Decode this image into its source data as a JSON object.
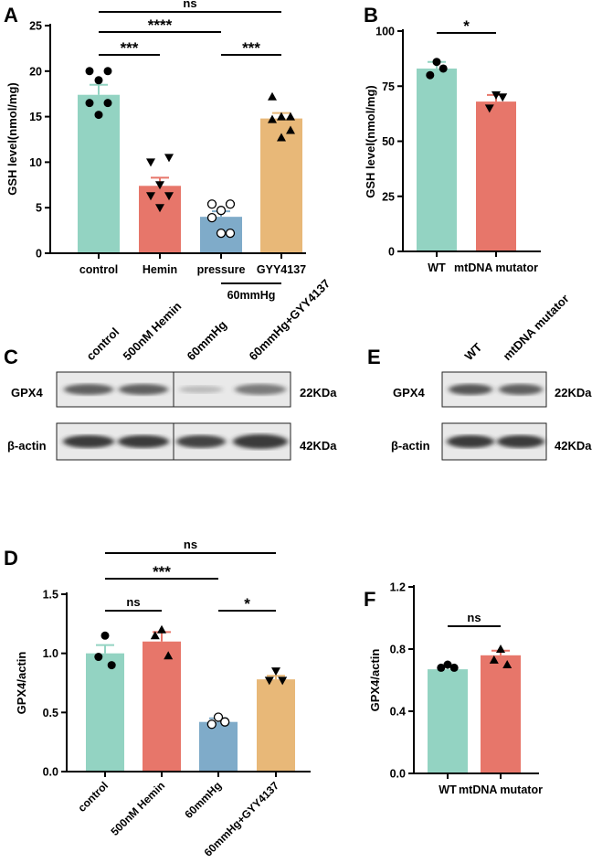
{
  "panels": {
    "A": "A",
    "B": "B",
    "C": "C",
    "D": "D",
    "E": "E",
    "F": "F"
  },
  "colors": {
    "teal": "#93d3c2",
    "red": "#e7766a",
    "blue": "#7fabc9",
    "orange": "#e8b878"
  },
  "blot_c": {
    "lanes": [
      "control",
      "500nM Hemin",
      "60mmHg",
      "60mmHg+GYY4137"
    ],
    "rows": [
      "GPX4",
      "β-actin"
    ],
    "sizes": [
      "22KDa",
      "42KDa"
    ]
  },
  "blot_e": {
    "lanes": [
      "WT",
      "mtDNA mutator"
    ],
    "rows": [
      "GPX4",
      "β-actin"
    ],
    "sizes": [
      "22KDa",
      "42KDa"
    ]
  },
  "chart_data": [
    {
      "type": "bar",
      "panel": "A",
      "ylabel": "GSH level(nmol/mg)",
      "ylim": [
        0,
        25
      ],
      "yticks": [
        0,
        5,
        10,
        15,
        20,
        25
      ],
      "categories": [
        "control",
        "Hemin",
        "pressure",
        "GYY4137"
      ],
      "group_label": "60mmHg",
      "values": [
        17.4,
        7.4,
        4.0,
        14.8
      ],
      "sem": [
        1.1,
        0.9,
        0.6,
        0.6
      ],
      "points": [
        [
          20,
          20,
          19,
          16.5,
          16.5,
          15.2
        ],
        [
          10,
          10.5,
          7.5,
          6.3,
          6.3,
          5.0
        ],
        [
          5.4,
          5.4,
          4.7,
          3.9,
          2.2,
          2.2
        ],
        [
          17.2,
          15,
          15,
          14.7,
          13.5,
          12.7
        ]
      ],
      "markers": [
        "circle",
        "triangle-down",
        "circle-open",
        "triangle-up"
      ],
      "bar_colors": [
        "#93d3c2",
        "#e7766a",
        "#7fabc9",
        "#e8b878"
      ],
      "significance": [
        {
          "from": 0,
          "to": 3,
          "label": "ns"
        },
        {
          "from": 0,
          "to": 2,
          "label": "****"
        },
        {
          "from": 0,
          "to": 1,
          "label": "***"
        },
        {
          "from": 2,
          "to": 3,
          "label": "***"
        }
      ]
    },
    {
      "type": "bar",
      "panel": "B",
      "ylabel": "GSH level(nmol/mg)",
      "ylim": [
        0,
        100
      ],
      "yticks": [
        0,
        25,
        50,
        75,
        100
      ],
      "categories": [
        "WT",
        "mtDNA mutator"
      ],
      "values": [
        83,
        68
      ],
      "sem": [
        3,
        3
      ],
      "points": [
        [
          86,
          80,
          83
        ],
        [
          71,
          65,
          70
        ]
      ],
      "markers": [
        "circle",
        "triangle-down"
      ],
      "bar_colors": [
        "#93d3c2",
        "#e7766a"
      ],
      "significance": [
        {
          "from": 0,
          "to": 1,
          "label": "*"
        }
      ]
    },
    {
      "type": "bar",
      "panel": "D",
      "ylabel": "GPX4/actin",
      "ylim": [
        0,
        1.5
      ],
      "yticks": [
        "0.0",
        "0.5",
        "1.0",
        "1.5"
      ],
      "categories": [
        "control",
        "500nM Hemin",
        "60mmHg",
        "60mmHg+GYY4137"
      ],
      "values": [
        1.0,
        1.1,
        0.42,
        0.78
      ],
      "sem": [
        0.07,
        0.08,
        0.03,
        0.03
      ],
      "points": [
        [
          1.15,
          0.97,
          0.9
        ],
        [
          1.2,
          1.15,
          0.98
        ],
        [
          0.46,
          0.4,
          0.42
        ],
        [
          0.85,
          0.77,
          0.77
        ]
      ],
      "markers": [
        "circle",
        "triangle-up",
        "circle-open",
        "triangle-down"
      ],
      "bar_colors": [
        "#93d3c2",
        "#e7766a",
        "#7fabc9",
        "#e8b878"
      ],
      "significance": [
        {
          "from": 0,
          "to": 3,
          "label": "ns"
        },
        {
          "from": 0,
          "to": 2,
          "label": "***"
        },
        {
          "from": 0,
          "to": 1,
          "label": "ns"
        },
        {
          "from": 2,
          "to": 3,
          "label": "*"
        }
      ]
    },
    {
      "type": "bar",
      "panel": "F",
      "ylabel": "GPX4/actin",
      "ylim": [
        0,
        1.2
      ],
      "yticks": [
        "0.0",
        "0.4",
        "0.8",
        "1.2"
      ],
      "categories": [
        "WT",
        "mtDNA mutator"
      ],
      "values": [
        0.67,
        0.76
      ],
      "sem": [
        0.02,
        0.03
      ],
      "points": [
        [
          0.7,
          0.68,
          0.68
        ],
        [
          0.8,
          0.73,
          0.7
        ]
      ],
      "markers": [
        "circle",
        "triangle-up"
      ],
      "bar_colors": [
        "#93d3c2",
        "#e7766a"
      ],
      "significance": [
        {
          "from": 0,
          "to": 1,
          "label": "ns"
        }
      ]
    }
  ]
}
